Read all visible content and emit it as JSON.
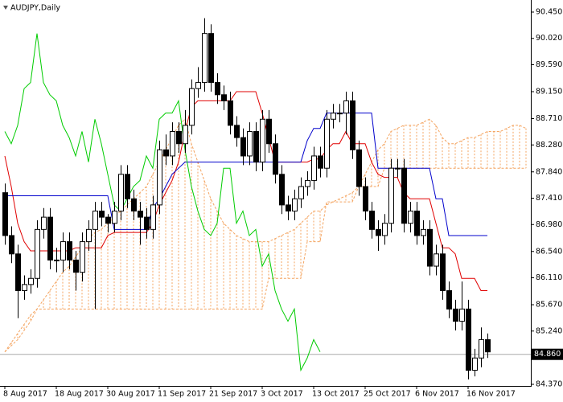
{
  "chart_data": {
    "type": "candlestick",
    "title": "AUDJPY,Daily",
    "categories": [
      "8 Aug 2017",
      null,
      null,
      null,
      null,
      null,
      null,
      null,
      "18 Aug 2017",
      null,
      null,
      null,
      null,
      null,
      null,
      null,
      "30 Aug 2017",
      null,
      null,
      null,
      null,
      null,
      null,
      null,
      "11 Sep 2017",
      null,
      null,
      null,
      null,
      null,
      null,
      null,
      "21 Sep 2017",
      null,
      null,
      null,
      null,
      null,
      null,
      null,
      "3 Oct 2017",
      null,
      null,
      null,
      null,
      null,
      null,
      null,
      "13 Oct 2017",
      null,
      null,
      null,
      null,
      null,
      null,
      null,
      "25 Oct 2017",
      null,
      null,
      null,
      null,
      null,
      null,
      null,
      "6 Nov 2017",
      null,
      null,
      null,
      null,
      null,
      null,
      null,
      "16 Nov 2017",
      null,
      null,
      null,
      null,
      null,
      null,
      null,
      null,
      null
    ],
    "open": [
      87.5,
      86.8,
      86.5,
      85.9,
      86.0,
      86.1,
      86.9,
      87.1,
      86.4,
      86.4,
      86.7,
      86.4,
      86.2,
      86.7,
      86.9,
      87.2,
      87.1,
      87.0,
      87.2,
      87.8,
      87.4,
      87.2,
      87.1,
      86.9,
      87.3,
      88.2,
      88.1,
      88.5,
      88.3,
      88.6,
      89.2,
      89.3,
      90.1,
      89.3,
      89.1,
      89.0,
      88.6,
      88.4,
      88.1,
      88.5,
      88.0,
      88.7,
      88.3,
      87.8,
      87.3,
      87.2,
      87.4,
      87.6,
      87.7,
      88.1,
      87.9,
      88.7,
      88.8,
      88.8,
      89.0,
      88.2,
      87.6,
      87.2,
      86.9,
      86.8,
      87.0,
      87.9,
      87.9,
      87.0,
      87.2,
      86.8,
      86.9,
      86.3,
      86.5,
      85.9,
      85.6,
      85.4,
      85.6,
      84.6,
      84.8,
      85.1,
      null,
      null,
      null,
      null,
      null,
      null
    ],
    "high": [
      87.65,
      86.95,
      86.65,
      86.15,
      86.25,
      87.05,
      87.25,
      87.25,
      86.6,
      86.85,
      86.85,
      86.55,
      86.85,
      87.05,
      87.35,
      87.35,
      87.15,
      87.35,
      87.95,
      87.95,
      87.55,
      87.35,
      87.25,
      87.45,
      88.35,
      88.45,
      88.65,
      88.65,
      88.85,
      89.35,
      89.55,
      90.35,
      90.25,
      89.45,
      89.25,
      89.15,
      88.75,
      88.55,
      88.65,
      88.65,
      88.85,
      88.85,
      88.45,
      87.95,
      87.45,
      87.55,
      87.75,
      87.85,
      88.25,
      88.25,
      88.85,
      88.95,
      88.95,
      89.15,
      89.15,
      88.35,
      87.75,
      87.35,
      87.05,
      87.15,
      88.05,
      88.05,
      88.05,
      87.35,
      87.35,
      87.05,
      87.05,
      86.65,
      86.65,
      86.05,
      85.75,
      86.05,
      85.75,
      84.95,
      85.3,
      85.2,
      null,
      null,
      null,
      null,
      null,
      null
    ],
    "low": [
      86.65,
      86.35,
      85.45,
      85.75,
      85.85,
      85.95,
      86.75,
      86.25,
      86.2,
      86.2,
      86.25,
      85.9,
      86.05,
      86.55,
      85.6,
      86.95,
      86.85,
      86.85,
      87.05,
      87.25,
      87.05,
      86.65,
      86.75,
      86.75,
      87.15,
      87.95,
      87.95,
      88.15,
      88.15,
      88.45,
      89.05,
      89.15,
      89.15,
      88.95,
      88.85,
      88.45,
      88.25,
      87.95,
      87.95,
      87.85,
      87.85,
      88.15,
      87.65,
      87.15,
      87.05,
      87.05,
      87.25,
      87.45,
      87.55,
      87.75,
      87.75,
      88.55,
      88.65,
      88.45,
      88.05,
      87.45,
      87.05,
      86.75,
      86.55,
      86.65,
      86.85,
      87.75,
      86.85,
      86.85,
      86.65,
      86.65,
      86.15,
      86.15,
      85.75,
      85.45,
      85.25,
      85.25,
      84.45,
      84.5,
      84.65,
      84.8,
      null,
      null,
      null,
      null,
      null,
      null
    ],
    "close": [
      86.8,
      86.5,
      85.9,
      86.0,
      86.1,
      86.9,
      87.1,
      86.4,
      86.4,
      86.7,
      86.4,
      86.2,
      86.7,
      86.9,
      87.2,
      87.1,
      87.0,
      87.2,
      87.8,
      87.4,
      87.2,
      87.1,
      86.9,
      87.3,
      88.2,
      88.1,
      88.5,
      88.3,
      88.6,
      89.2,
      89.3,
      90.1,
      89.3,
      89.1,
      89.0,
      88.6,
      88.4,
      88.1,
      88.5,
      88.0,
      88.7,
      88.3,
      87.8,
      87.3,
      87.2,
      87.4,
      87.6,
      87.7,
      88.1,
      87.9,
      88.7,
      88.8,
      88.8,
      89.0,
      88.2,
      87.6,
      87.2,
      86.9,
      86.8,
      87.0,
      87.9,
      87.9,
      87.0,
      87.2,
      86.8,
      86.9,
      86.3,
      86.5,
      85.9,
      85.6,
      85.4,
      85.6,
      84.6,
      84.8,
      85.1,
      84.9,
      null,
      null,
      null,
      null,
      null,
      null
    ],
    "overlays": [
      {
        "color": "#e00000",
        "values": [
          88.1,
          87.6,
          87.0,
          86.7,
          86.55,
          86.55,
          86.55,
          86.55,
          86.55,
          86.55,
          86.55,
          86.6,
          86.6,
          86.6,
          86.6,
          86.6,
          86.8,
          86.85,
          86.85,
          86.85,
          86.85,
          86.85,
          86.85,
          87.0,
          87.3,
          87.5,
          87.7,
          88.0,
          88.5,
          88.9,
          89.0,
          89.0,
          89.0,
          89.0,
          89.0,
          89.0,
          89.15,
          89.15,
          89.15,
          89.15,
          88.8,
          88.4,
          88.0,
          88.0,
          88.0,
          88.0,
          88.0,
          88.0,
          88.05,
          88.05,
          88.2,
          88.3,
          88.3,
          88.5,
          88.3,
          88.3,
          88.3,
          88.0,
          87.8,
          87.75,
          87.75,
          87.75,
          87.5,
          87.4,
          87.4,
          87.4,
          87.4,
          87.0,
          86.6,
          86.6,
          86.5,
          86.1,
          86.1,
          86.1,
          85.9,
          85.9,
          null,
          null,
          null,
          null,
          null,
          null
        ]
      },
      {
        "color": "#0000cc",
        "values": [
          87.45,
          87.45,
          87.45,
          87.45,
          87.45,
          87.45,
          87.45,
          87.45,
          87.45,
          87.45,
          87.45,
          87.45,
          87.45,
          87.45,
          87.45,
          87.45,
          87.45,
          86.9,
          86.9,
          86.9,
          86.9,
          86.9,
          86.9,
          87.25,
          87.4,
          87.6,
          87.8,
          87.9,
          88.0,
          88.0,
          88.0,
          88.0,
          88.0,
          88.0,
          88.0,
          88.0,
          88.0,
          88.0,
          88.0,
          88.0,
          88.0,
          88.0,
          88.0,
          88.0,
          88.0,
          88.0,
          88.0,
          88.35,
          88.55,
          88.55,
          88.8,
          88.8,
          88.8,
          88.8,
          88.8,
          88.8,
          88.8,
          88.8,
          87.9,
          87.9,
          87.9,
          87.9,
          87.9,
          87.9,
          87.9,
          87.9,
          87.9,
          87.4,
          87.4,
          86.8,
          86.8,
          86.8,
          86.8,
          86.8,
          86.8,
          86.8,
          null,
          null,
          null,
          null,
          null,
          null
        ]
      },
      {
        "color": "#00cc00",
        "values": [
          88.5,
          88.3,
          88.6,
          89.2,
          89.3,
          90.1,
          89.3,
          89.1,
          89.0,
          88.6,
          88.4,
          88.1,
          88.5,
          88.0,
          88.7,
          88.3,
          87.8,
          87.3,
          87.2,
          87.4,
          87.6,
          87.7,
          88.1,
          87.9,
          88.7,
          88.8,
          88.8,
          89.0,
          88.2,
          87.6,
          87.2,
          86.9,
          86.8,
          87.0,
          87.9,
          87.9,
          87.0,
          87.2,
          86.8,
          86.9,
          86.3,
          86.5,
          85.9,
          85.6,
          85.4,
          85.6,
          84.6,
          84.8,
          85.1,
          84.9,
          null,
          null,
          null,
          null,
          null,
          null,
          null,
          null,
          null,
          null,
          null,
          null,
          null,
          null,
          null,
          null,
          null,
          null,
          null,
          null,
          null,
          null,
          null,
          null,
          null,
          null,
          null,
          null,
          null,
          null,
          null,
          null
        ]
      }
    ],
    "cloud": {
      "color": "#f4a460",
      "span_a": [
        84.9,
        85.05,
        85.2,
        85.35,
        85.5,
        85.6,
        85.75,
        85.9,
        86.05,
        86.2,
        86.3,
        86.45,
        86.6,
        86.75,
        86.85,
        86.9,
        87.0,
        87.1,
        87.2,
        87.3,
        87.4,
        87.5,
        87.6,
        87.8,
        88.0,
        88.2,
        88.4,
        88.6,
        88.7,
        88.3,
        88.0,
        87.7,
        87.4,
        87.2,
        87.0,
        86.9,
        86.8,
        86.75,
        86.7,
        86.7,
        86.7,
        86.7,
        86.75,
        86.8,
        86.85,
        86.9,
        87.0,
        87.1,
        87.2,
        87.2,
        87.3,
        87.35,
        87.4,
        87.45,
        87.5,
        87.6,
        87.8,
        88.0,
        88.2,
        88.3,
        88.5,
        88.55,
        88.6,
        88.6,
        88.6,
        88.65,
        88.7,
        88.6,
        88.4,
        88.3,
        88.3,
        88.35,
        88.4,
        88.4,
        88.45,
        88.5,
        88.5,
        88.5,
        88.55,
        88.6,
        88.6,
        88.55
      ],
      "span_b": [
        84.9,
        85.0,
        85.1,
        85.25,
        85.4,
        85.6,
        85.6,
        85.6,
        85.6,
        85.6,
        85.6,
        85.6,
        85.6,
        85.6,
        85.6,
        85.6,
        85.6,
        85.6,
        85.6,
        85.6,
        85.6,
        85.6,
        85.6,
        85.6,
        85.6,
        85.6,
        85.6,
        85.6,
        85.6,
        85.6,
        85.6,
        85.6,
        85.6,
        85.6,
        85.6,
        85.6,
        85.6,
        85.6,
        85.6,
        85.6,
        85.6,
        86.1,
        86.1,
        86.1,
        86.1,
        86.1,
        86.1,
        86.7,
        86.7,
        86.7,
        87.35,
        87.35,
        87.35,
        87.35,
        87.35,
        87.6,
        87.6,
        87.6,
        87.6,
        87.9,
        87.9,
        87.9,
        87.9,
        87.9,
        87.9,
        87.9,
        87.9,
        87.9,
        87.9,
        87.9,
        87.9,
        87.9,
        87.9,
        87.9,
        87.9,
        87.9,
        87.9,
        87.9,
        87.9,
        87.9,
        87.9,
        87.9
      ]
    },
    "current_price": {
      "value": 84.86,
      "label": "84.860"
    },
    "ylim": [
      84.344,
      90.647
    ],
    "yticks": [
      {
        "value": 90.45,
        "label": "90.450"
      },
      {
        "value": 90.02,
        "label": "90.020"
      },
      {
        "value": 89.59,
        "label": "89.590"
      },
      {
        "value": 89.15,
        "label": "89.150"
      },
      {
        "value": 88.71,
        "label": "88.710"
      },
      {
        "value": 88.28,
        "label": "88.280"
      },
      {
        "value": 87.84,
        "label": "87.840"
      },
      {
        "value": 87.41,
        "label": "87.410"
      },
      {
        "value": 86.98,
        "label": "86.980"
      },
      {
        "value": 86.54,
        "label": "86.540"
      },
      {
        "value": 86.11,
        "label": "86.110"
      },
      {
        "value": 85.67,
        "label": "85.670"
      },
      {
        "value": 85.24,
        "label": "85.240"
      },
      {
        "value": 84.37,
        "label": "84.370"
      }
    ],
    "grid": false
  }
}
